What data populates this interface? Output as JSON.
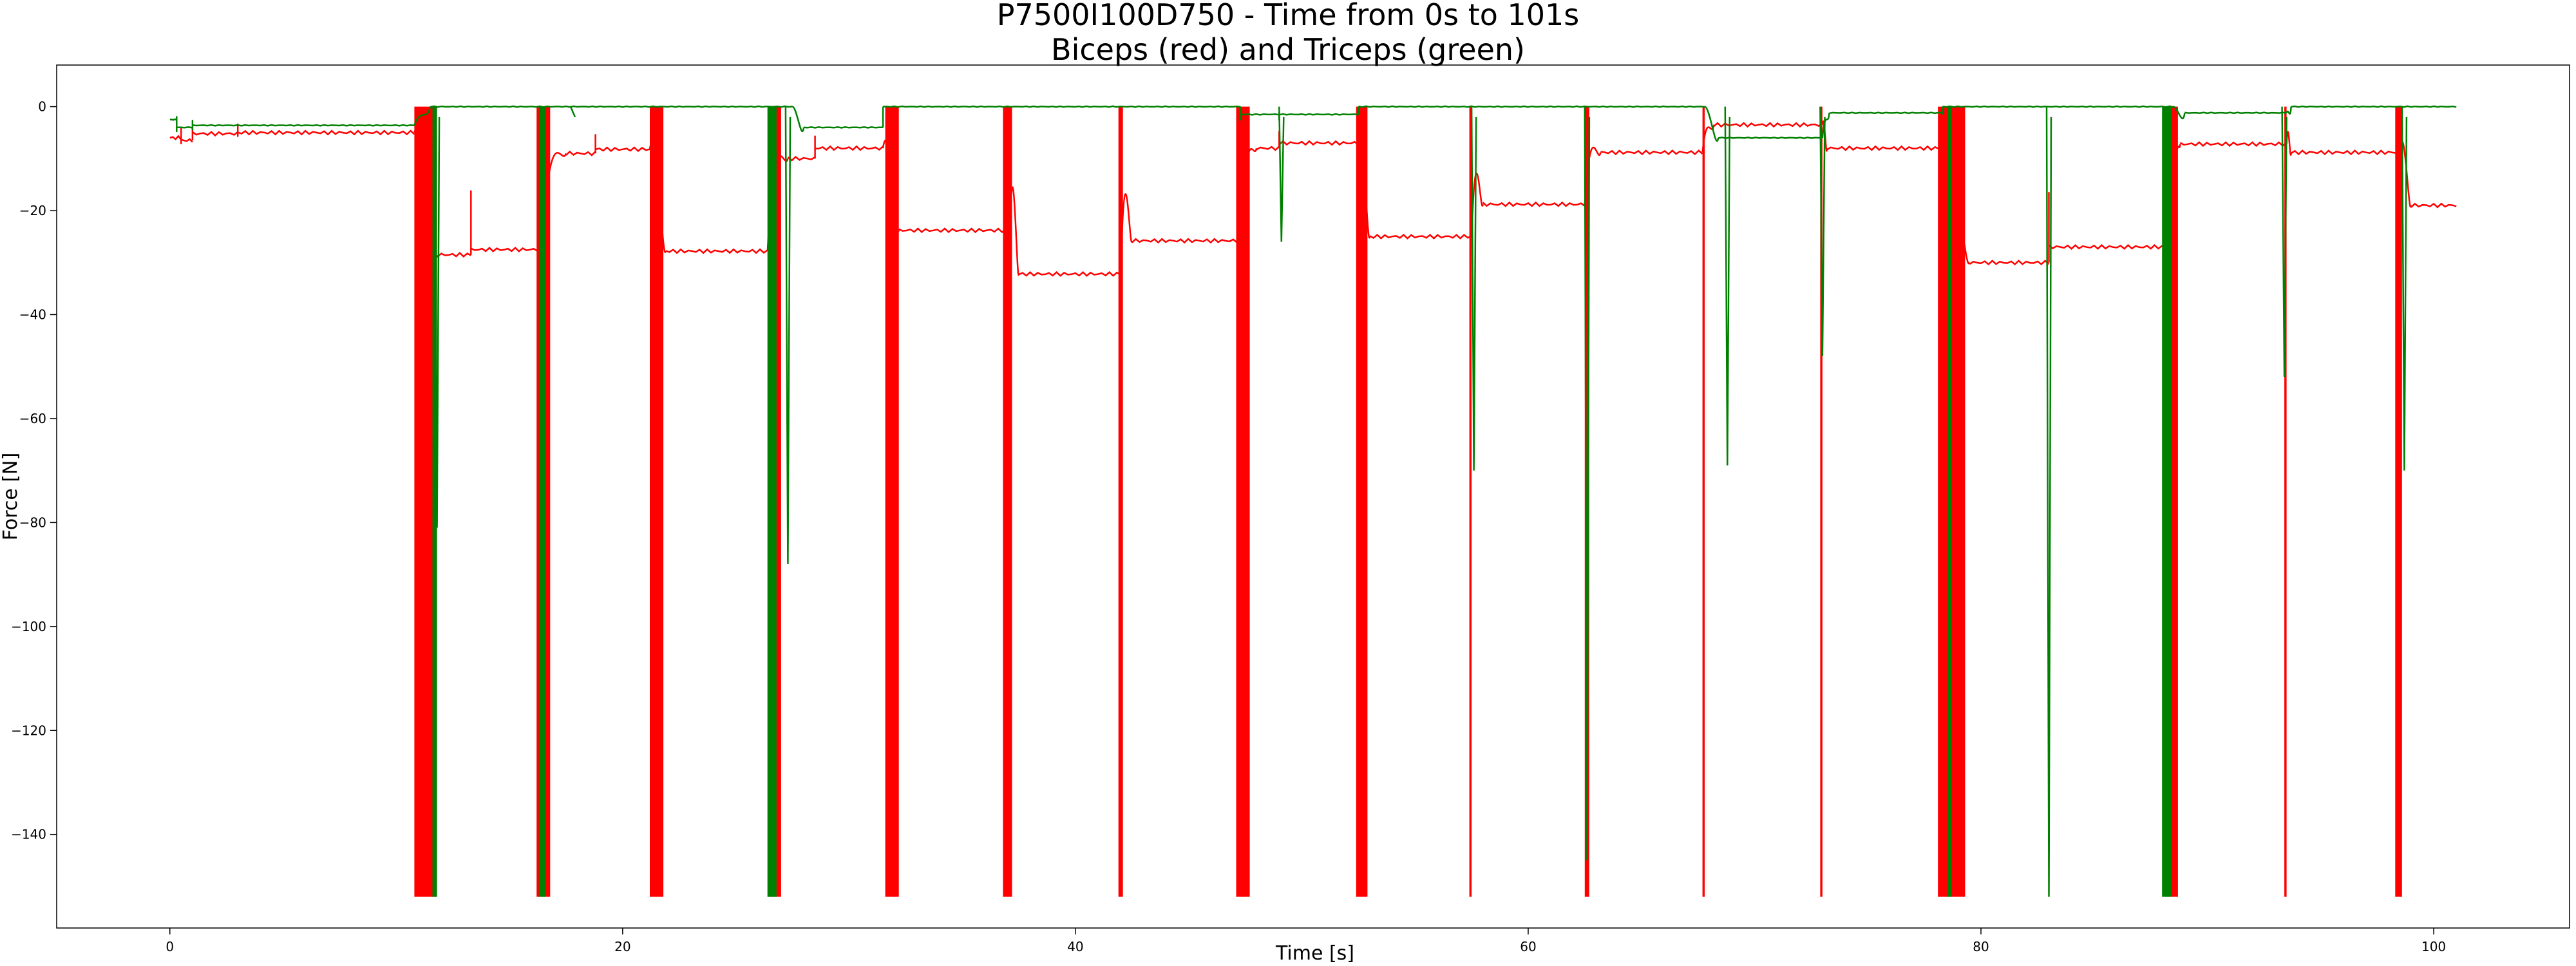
{
  "chart_data": {
    "type": "line",
    "title": "P7500I100D750 - Time from 0s to 101s",
    "subtitle": "Biceps (red) and Triceps (green)",
    "xlabel": "Time [s]",
    "ylabel": "Force [N]",
    "xlim": [
      -5,
      106
    ],
    "ylim": [
      -158,
      8
    ],
    "x_ticks": [
      0,
      20,
      40,
      60,
      80,
      100
    ],
    "y_ticks": [
      0,
      -20,
      -40,
      -60,
      -80,
      -100,
      -120,
      -140
    ],
    "grid": false,
    "legend": "none",
    "series": [
      {
        "color": "#ff0000",
        "plateaus": [
          [
            0.0,
            0.5,
            -6.0
          ],
          [
            0.5,
            1.0,
            -6.5
          ],
          [
            1.0,
            3.0,
            -5.2
          ],
          [
            3.0,
            10.8,
            -5.0
          ],
          [
            11.5,
            13.3,
            -28.5
          ],
          [
            13.3,
            16.4,
            -27.5
          ],
          [
            17.5,
            18.8,
            -9.0
          ],
          [
            18.8,
            21.2,
            -8.2
          ],
          [
            21.9,
            26.4,
            -27.8
          ],
          [
            27.3,
            28.5,
            -10.0
          ],
          [
            28.5,
            31.5,
            -8.0
          ],
          [
            32.2,
            37.1,
            -23.8
          ],
          [
            37.5,
            42.0,
            -32.2
          ],
          [
            42.5,
            47.3,
            -25.8
          ],
          [
            48.0,
            49.0,
            -8.0
          ],
          [
            49.0,
            52.5,
            -7.0
          ],
          [
            53.0,
            57.5,
            -25.0
          ],
          [
            58.0,
            62.5,
            -18.8
          ],
          [
            63.2,
            67.7,
            -8.8
          ],
          [
            68.2,
            73.0,
            -3.5
          ],
          [
            73.2,
            78.3,
            -8.0
          ],
          [
            79.5,
            83.0,
            -30.0
          ],
          [
            83.0,
            88.5,
            -27.0
          ],
          [
            88.8,
            93.5,
            -7.2
          ],
          [
            93.7,
            98.5,
            -8.8
          ],
          [
            99.0,
            101.0,
            -19.0
          ]
        ],
        "dropouts": [
          [
            10.8,
            11.8
          ],
          [
            16.2,
            16.8
          ],
          [
            21.2,
            21.8
          ],
          [
            26.4,
            27.0
          ],
          [
            31.6,
            32.2
          ],
          [
            36.8,
            37.2
          ],
          [
            41.9,
            42.1
          ],
          [
            47.1,
            47.7
          ],
          [
            52.4,
            52.9
          ],
          [
            57.4,
            57.5
          ],
          [
            62.5,
            62.7
          ],
          [
            67.7,
            67.8
          ],
          [
            72.9,
            73.0
          ],
          [
            78.1,
            79.3
          ],
          [
            88.2,
            88.7
          ],
          [
            93.4,
            93.5
          ],
          [
            98.3,
            98.6
          ]
        ]
      },
      {
        "color": "#008000",
        "plateaus": [
          [
            0.0,
            0.3,
            -2.5
          ],
          [
            0.3,
            1.0,
            -4.0
          ],
          [
            1.0,
            10.8,
            -3.6
          ],
          [
            11.5,
            27.5,
            0.0
          ],
          [
            28.0,
            31.5,
            -4.0
          ],
          [
            31.5,
            47.3,
            0.0
          ],
          [
            47.3,
            49.0,
            -1.5
          ],
          [
            49.0,
            52.5,
            -1.5
          ],
          [
            52.5,
            67.8,
            0.0
          ],
          [
            68.4,
            73.0,
            -6.0
          ],
          [
            73.3,
            78.3,
            -1.2
          ],
          [
            78.3,
            88.5,
            0.0
          ],
          [
            89.0,
            93.5,
            -1.2
          ],
          [
            93.7,
            101.0,
            0.0
          ]
        ],
        "dropouts": [
          [
            11.6,
            11.8
          ],
          [
            16.3,
            16.6
          ],
          [
            26.4,
            26.8
          ],
          [
            78.5,
            78.7
          ],
          [
            88.0,
            88.4
          ]
        ],
        "spikes": [
          [
            11.8,
            -81
          ],
          [
            17.8,
            -1
          ],
          [
            27.3,
            -88
          ],
          [
            49.1,
            -26
          ],
          [
            68.8,
            -69
          ],
          [
            73.0,
            -48
          ],
          [
            57.6,
            -70
          ],
          [
            62.6,
            -145
          ],
          [
            83.0,
            -152
          ],
          [
            93.4,
            -52
          ],
          [
            98.7,
            -70
          ]
        ]
      }
    ]
  }
}
